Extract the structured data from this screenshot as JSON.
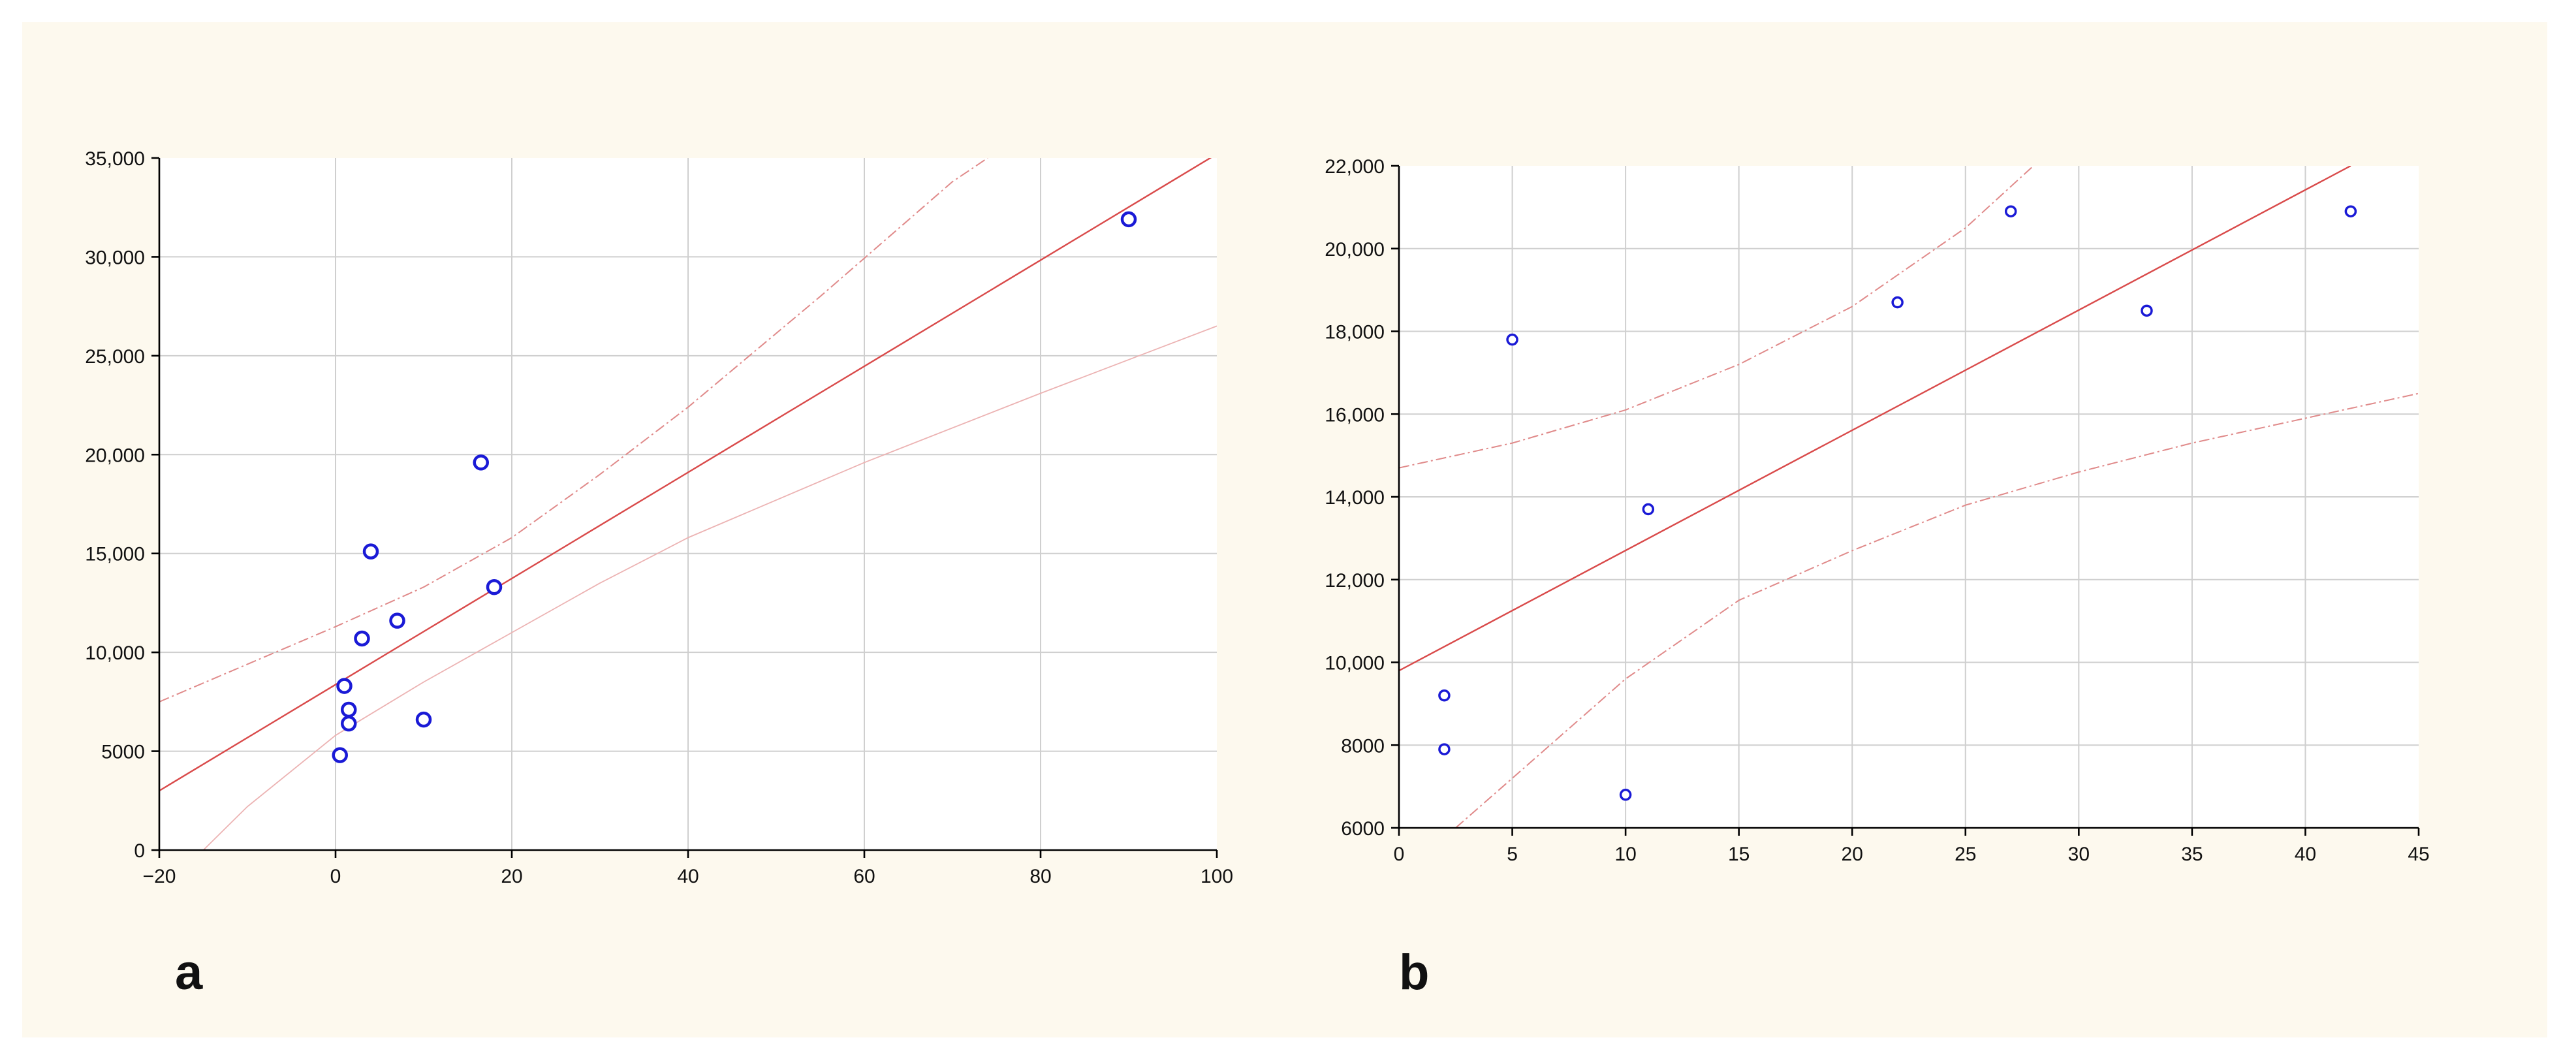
{
  "chart_data": [
    {
      "panel_label": "a",
      "type": "scatter",
      "xlim": [
        -20,
        100
      ],
      "ylim": [
        0,
        35000
      ],
      "x_ticks": [
        -20,
        0,
        20,
        40,
        60,
        80,
        100
      ],
      "x_tick_labels": [
        "−20",
        "0",
        "20",
        "40",
        "60",
        "80",
        "100"
      ],
      "y_ticks": [
        0,
        5000,
        10000,
        15000,
        20000,
        25000,
        30000,
        35000
      ],
      "y_tick_labels": [
        "0",
        "5000",
        "10,000",
        "15,000",
        "20,000",
        "25,000",
        "30,000",
        "35,000"
      ],
      "grid": true,
      "points": [
        {
          "x": 0.5,
          "y": 4800
        },
        {
          "x": 1.5,
          "y": 6400
        },
        {
          "x": 1.5,
          "y": 7100
        },
        {
          "x": 1.0,
          "y": 8300
        },
        {
          "x": 3.0,
          "y": 10700
        },
        {
          "x": 4.0,
          "y": 15100
        },
        {
          "x": 7.0,
          "y": 11600
        },
        {
          "x": 10.0,
          "y": 6600
        },
        {
          "x": 16.5,
          "y": 19600
        },
        {
          "x": 18.0,
          "y": 13300
        },
        {
          "x": 90.0,
          "y": 31900
        }
      ],
      "fit_line": [
        {
          "x": -20,
          "y": 3000
        },
        {
          "x": 100,
          "y": 35200
        }
      ],
      "upper_band": [
        {
          "x": -20,
          "y": 7500
        },
        {
          "x": 0,
          "y": 11300
        },
        {
          "x": 10,
          "y": 13300
        },
        {
          "x": 20,
          "y": 15800
        },
        {
          "x": 30,
          "y": 19000
        },
        {
          "x": 40,
          "y": 22400
        },
        {
          "x": 55,
          "y": 28000
        },
        {
          "x": 70,
          "y": 33800
        },
        {
          "x": 74,
          "y": 35000
        }
      ],
      "lower_band": [
        {
          "x": -15,
          "y": 0
        },
        {
          "x": -10,
          "y": 2200
        },
        {
          "x": 0,
          "y": 5800
        },
        {
          "x": 10,
          "y": 8500
        },
        {
          "x": 20,
          "y": 11000
        },
        {
          "x": 30,
          "y": 13500
        },
        {
          "x": 40,
          "y": 15800
        },
        {
          "x": 60,
          "y": 19600
        },
        {
          "x": 80,
          "y": 23100
        },
        {
          "x": 100,
          "y": 26500
        }
      ]
    },
    {
      "panel_label": "b",
      "type": "scatter",
      "xlim": [
        0,
        45
      ],
      "ylim": [
        6000,
        22000
      ],
      "x_ticks": [
        0,
        5,
        10,
        15,
        20,
        25,
        30,
        35,
        40,
        45
      ],
      "x_tick_labels": [
        "0",
        "5",
        "10",
        "15",
        "20",
        "25",
        "30",
        "35",
        "40",
        "45"
      ],
      "y_ticks": [
        6000,
        8000,
        10000,
        12000,
        14000,
        16000,
        18000,
        20000,
        22000
      ],
      "y_tick_labels": [
        "6000",
        "8000",
        "10,000",
        "12,000",
        "14,000",
        "16,000",
        "18,000",
        "20,000",
        "22,000"
      ],
      "grid": true,
      "points": [
        {
          "x": 2,
          "y": 9200
        },
        {
          "x": 2,
          "y": 7900
        },
        {
          "x": 5,
          "y": 17800
        },
        {
          "x": 10,
          "y": 6800
        },
        {
          "x": 11,
          "y": 13700
        },
        {
          "x": 22,
          "y": 18700
        },
        {
          "x": 27,
          "y": 20900
        },
        {
          "x": 33,
          "y": 18500
        },
        {
          "x": 42,
          "y": 20900
        }
      ],
      "fit_line": [
        {
          "x": 0,
          "y": 9800
        },
        {
          "x": 42,
          "y": 22000
        }
      ],
      "upper_band": [
        {
          "x": 0,
          "y": 14700
        },
        {
          "x": 5,
          "y": 15300
        },
        {
          "x": 10,
          "y": 16100
        },
        {
          "x": 15,
          "y": 17200
        },
        {
          "x": 20,
          "y": 18600
        },
        {
          "x": 25,
          "y": 20500
        },
        {
          "x": 28,
          "y": 22000
        }
      ],
      "lower_band": [
        {
          "x": 2.5,
          "y": 6000
        },
        {
          "x": 5,
          "y": 7200
        },
        {
          "x": 10,
          "y": 9600
        },
        {
          "x": 15,
          "y": 11500
        },
        {
          "x": 20,
          "y": 12700
        },
        {
          "x": 25,
          "y": 13800
        },
        {
          "x": 30,
          "y": 14600
        },
        {
          "x": 35,
          "y": 15300
        },
        {
          "x": 40,
          "y": 15900
        },
        {
          "x": 45,
          "y": 16500
        }
      ]
    }
  ],
  "colors": {
    "background": "#fdf9ee",
    "points": "#1a1ad6",
    "fit_line": "#d94a4a",
    "confidence_band": "#e08a8a",
    "grid": "#cfcfcf"
  }
}
